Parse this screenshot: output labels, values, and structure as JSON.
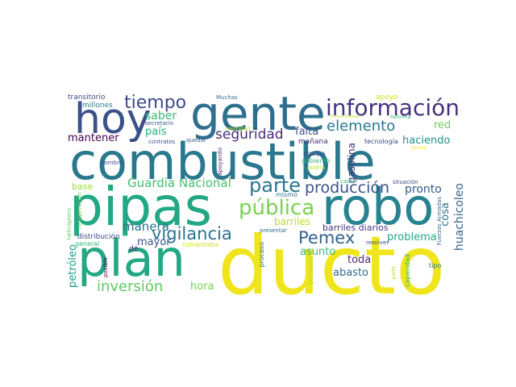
{
  "colors": {
    "background": "#ffffff",
    "palette": [
      "#440154",
      "#472d7b",
      "#3b528b",
      "#2c728e",
      "#21918c",
      "#28ae80",
      "#5ec962",
      "#addc30",
      "#fde725"
    ]
  },
  "words": [
    {
      "text": "combustible",
      "color": "#2a788e"
    },
    {
      "text": "ducto",
      "color": "#f0e51c"
    },
    {
      "text": "pipas",
      "color": "#22a884"
    },
    {
      "text": "robo",
      "color": "#26838f"
    },
    {
      "text": "plan",
      "color": "#23a884"
    },
    {
      "text": "gente",
      "color": "#2e6f8e"
    },
    {
      "text": "hoy",
      "color": "#3b5188"
    },
    {
      "text": "información",
      "color": "#46327e"
    },
    {
      "text": "tiempo",
      "color": "#3e4989"
    },
    {
      "text": "parte",
      "color": "#2b758e"
    },
    {
      "text": "pública",
      "color": "#7ad151"
    },
    {
      "text": "producción",
      "color": "#3b528b"
    },
    {
      "text": "Pemex",
      "color": "#33638d"
    },
    {
      "text": "vigilancia",
      "color": "#2c728e"
    },
    {
      "text": "Guardia Nacional",
      "color": "#44bf70"
    },
    {
      "text": "elemento",
      "color": "#2a788e"
    },
    {
      "text": "seguridad",
      "color": "#472d7b"
    },
    {
      "text": "inversión",
      "color": "#5ec962"
    },
    {
      "text": "manera",
      "color": "#2c728e"
    },
    {
      "text": "huachicoleo",
      "color": "#33638d"
    },
    {
      "text": "saber",
      "color": "#3aba76"
    },
    {
      "text": "país",
      "color": "#27ad81"
    },
    {
      "text": "mantener",
      "color": "#440154"
    },
    {
      "text": "falta",
      "color": "#3b528b"
    },
    {
      "text": "haciendo",
      "color": "#21918c"
    },
    {
      "text": "red",
      "color": "#6ece58"
    },
    {
      "text": "pronto",
      "color": "#38598c"
    },
    {
      "text": "cosa",
      "color": "#2c728e"
    },
    {
      "text": "barriles",
      "color": "#b5de2b"
    },
    {
      "text": "mayor",
      "color": "#3b528b"
    },
    {
      "text": "problema",
      "color": "#22a884"
    },
    {
      "text": "toda",
      "color": "#482878"
    },
    {
      "text": "abasto",
      "color": "#31688e"
    },
    {
      "text": "hora",
      "color": "#7ad151"
    },
    {
      "text": "petróleo",
      "color": "#1f9e89"
    },
    {
      "text": "base",
      "color": "#a0da39"
    },
    {
      "text": "asunto",
      "color": "#35b779"
    },
    {
      "text": "barriles diarios",
      "color": "#443983"
    },
    {
      "text": "gasolina",
      "color": "#46327e"
    },
    {
      "text": "transitorio",
      "color": "#3e4989"
    },
    {
      "text": "millones",
      "color": "#287c8e"
    },
    {
      "text": "Muchas",
      "color": "#2c728e"
    },
    {
      "text": "apoyo",
      "color": "#d2e21b"
    },
    {
      "text": "secretario",
      "color": "#39568c"
    },
    {
      "text": "mañana",
      "color": "#472c7a"
    },
    {
      "text": "tecnología",
      "color": "#3e4989"
    },
    {
      "text": "Policía Federal",
      "color": "#bddf26"
    },
    {
      "text": "Reforma",
      "color": "#3aba76"
    },
    {
      "text": "cantidad",
      "color": "#bddf26"
    },
    {
      "text": "contratos",
      "color": "#3b528b"
    },
    {
      "text": "quedar",
      "color": "#33638d"
    },
    {
      "text": "ternos",
      "color": "#fde725"
    },
    {
      "text": "equipo",
      "color": "#3e4989"
    },
    {
      "text": "gobierno",
      "color": "#35b779"
    },
    {
      "text": "podría",
      "color": "#b5de2b"
    },
    {
      "text": "nombre",
      "color": "#3e4989"
    },
    {
      "text": "apoyando",
      "color": "#472d7b"
    },
    {
      "text": "caída",
      "color": "#35b779"
    },
    {
      "text": "situación",
      "color": "#3e4989"
    },
    {
      "text": "Fuerzas Armadas",
      "color": "#31688e"
    },
    {
      "text": "mismo",
      "color": "#2c728e"
    },
    {
      "text": "recuperación",
      "color": "#6ece58"
    },
    {
      "text": "distribución",
      "color": "#3e4989"
    },
    {
      "text": "helicóptero",
      "color": "#5ec962"
    },
    {
      "text": "presentar",
      "color": "#31688e"
    },
    {
      "text": "comentaba",
      "color": "#d2e21b"
    },
    {
      "text": "general",
      "color": "#35b779"
    },
    {
      "text": "proceso",
      "color": "#2c728e"
    },
    {
      "text": "personal",
      "color": "#b5de2b"
    },
    {
      "text": "resolver",
      "color": "#3e4989"
    },
    {
      "text": "capacidad",
      "color": "#35b779"
    },
    {
      "text": "partir",
      "color": "#addc30"
    },
    {
      "text": "tipo",
      "color": "#2c728e"
    },
    {
      "text": "posible",
      "color": "#440154"
    },
    {
      "text": "dé",
      "color": "#472d7b"
    }
  ]
}
